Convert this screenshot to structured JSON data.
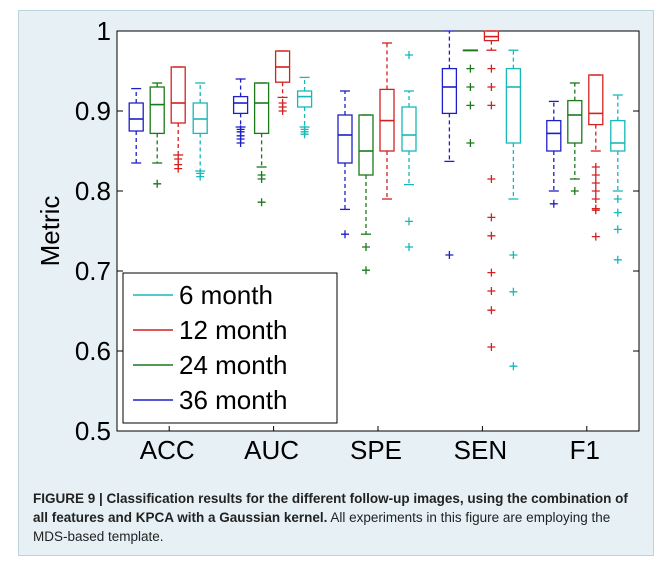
{
  "chart_data": {
    "type": "box",
    "ylabel": "Metric",
    "ylim": [
      0.5,
      1.0
    ],
    "yticks": [
      0.5,
      0.6,
      0.7,
      0.8,
      0.9,
      1
    ],
    "yticklabels": [
      "0.5",
      "0.6",
      "0.7",
      "0.8",
      "0.9",
      "1"
    ],
    "categories": [
      "ACC",
      "AUC",
      "SPE",
      "SEN",
      "F1"
    ],
    "legend_position": "bottom-left",
    "series": [
      {
        "name": "36 month",
        "color": "#1f1fc8",
        "boxes": [
          {
            "whisker_low": 0.835,
            "q1": 0.875,
            "median": 0.89,
            "q3": 0.91,
            "whisker_high": 0.928,
            "outliers": []
          },
          {
            "whisker_low": 0.88,
            "q1": 0.897,
            "median": 0.91,
            "q3": 0.918,
            "whisker_high": 0.94,
            "outliers": [
              0.877,
              0.874,
              0.869,
              0.865,
              0.86
            ]
          },
          {
            "whisker_low": 0.777,
            "q1": 0.835,
            "median": 0.87,
            "q3": 0.895,
            "whisker_high": 0.925,
            "outliers": [
              0.746
            ]
          },
          {
            "whisker_low": 0.837,
            "q1": 0.897,
            "median": 0.93,
            "q3": 0.953,
            "whisker_high": 1.0,
            "outliers": [
              0.72
            ]
          },
          {
            "whisker_low": 0.8,
            "q1": 0.85,
            "median": 0.872,
            "q3": 0.888,
            "whisker_high": 0.912,
            "outliers": [
              0.784
            ]
          }
        ]
      },
      {
        "name": "24 month",
        "color": "#1a7a1a",
        "boxes": [
          {
            "whisker_low": 0.835,
            "q1": 0.872,
            "median": 0.908,
            "q3": 0.93,
            "whisker_high": 0.935,
            "outliers": [
              0.809
            ]
          },
          {
            "whisker_low": 0.83,
            "q1": 0.872,
            "median": 0.91,
            "q3": 0.935,
            "whisker_high": 0.935,
            "outliers": [
              0.82,
              0.815,
              0.786
            ]
          },
          {
            "whisker_low": 0.746,
            "q1": 0.82,
            "median": 0.85,
            "q3": 0.895,
            "whisker_high": 0.895,
            "outliers": [
              0.73,
              0.701
            ]
          },
          {
            "whisker_low": 0.976,
            "q1": 0.976,
            "median": 0.976,
            "q3": 0.976,
            "whisker_high": 0.976,
            "outliers": [
              0.953,
              0.93,
              0.907,
              0.86
            ]
          },
          {
            "whisker_low": 0.815,
            "q1": 0.86,
            "median": 0.895,
            "q3": 0.913,
            "whisker_high": 0.935,
            "outliers": [
              0.8
            ]
          }
        ]
      },
      {
        "name": "12 month",
        "color": "#d42020",
        "boxes": [
          {
            "whisker_low": 0.845,
            "q1": 0.885,
            "median": 0.91,
            "q3": 0.955,
            "whisker_high": 0.955,
            "outliers": [
              0.84,
              0.833,
              0.828
            ]
          },
          {
            "whisker_low": 0.917,
            "q1": 0.936,
            "median": 0.955,
            "q3": 0.975,
            "whisker_high": 0.975,
            "outliers": [
              0.91,
              0.905,
              0.9
            ]
          },
          {
            "whisker_low": 0.79,
            "q1": 0.85,
            "median": 0.888,
            "q3": 0.927,
            "whisker_high": 0.985,
            "outliers": []
          },
          {
            "whisker_low": 0.976,
            "q1": 0.988,
            "median": 0.993,
            "q3": 1.0,
            "whisker_high": 1.0,
            "outliers": [
              0.953,
              0.93,
              0.907,
              0.815,
              0.767,
              0.744,
              0.698,
              0.675,
              0.651,
              0.605
            ]
          },
          {
            "whisker_low": 0.85,
            "q1": 0.883,
            "median": 0.897,
            "q3": 0.945,
            "whisker_high": 0.945,
            "outliers": [
              0.83,
              0.82,
              0.81,
              0.8,
              0.79,
              0.778,
              0.776,
              0.743
            ]
          }
        ]
      },
      {
        "name": "6 month",
        "color": "#18b8b8",
        "boxes": [
          {
            "whisker_low": 0.825,
            "q1": 0.872,
            "median": 0.89,
            "q3": 0.91,
            "whisker_high": 0.935,
            "outliers": [
              0.822,
              0.818
            ]
          },
          {
            "whisker_low": 0.88,
            "q1": 0.905,
            "median": 0.918,
            "q3": 0.925,
            "whisker_high": 0.942,
            "outliers": [
              0.877,
              0.874,
              0.871
            ]
          },
          {
            "whisker_low": 0.808,
            "q1": 0.85,
            "median": 0.87,
            "q3": 0.905,
            "whisker_high": 0.925,
            "outliers": [
              0.97,
              0.762,
              0.73
            ]
          },
          {
            "whisker_low": 0.79,
            "q1": 0.86,
            "median": 0.93,
            "q3": 0.953,
            "whisker_high": 0.976,
            "outliers": [
              0.72,
              0.674,
              0.581
            ]
          },
          {
            "whisker_low": 0.8,
            "q1": 0.85,
            "median": 0.86,
            "q3": 0.888,
            "whisker_high": 0.92,
            "outliers": [
              0.79,
              0.773,
              0.752,
              0.714
            ]
          }
        ]
      }
    ]
  },
  "legend": {
    "items": [
      {
        "label": "6 month",
        "color": "#18b8b8"
      },
      {
        "label": "12 month",
        "color": "#d42020"
      },
      {
        "label": "24 month",
        "color": "#1a7a1a"
      },
      {
        "label": "36 month",
        "color": "#1f1fc8"
      }
    ]
  },
  "caption": {
    "lead": "FIGURE 9 | Classification results for the different follow-up images, using the combination of all features and KPCA with a Gaussian kernel.",
    "body": " All experiments in this figure are employing the MDS-based template."
  }
}
